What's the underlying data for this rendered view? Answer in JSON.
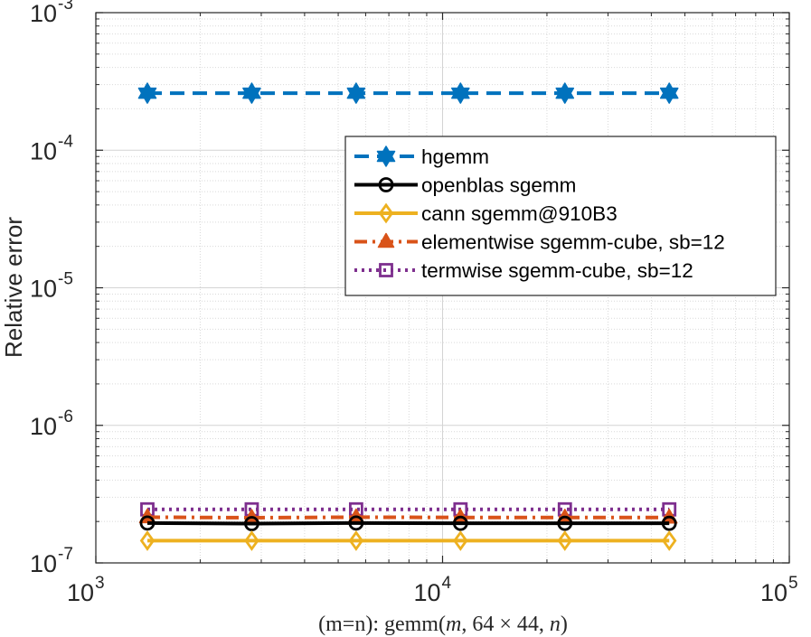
{
  "chart_data": {
    "type": "line",
    "title": "",
    "xlabel": "(m=n):  gemm(m, 64 × 44, n)",
    "xlabel_parts": {
      "prefix": "(m=n):  gemm(",
      "m": "m",
      "mid": ", 64 × 44, ",
      "n": "n",
      "suffix": ")"
    },
    "ylabel": "Relative error",
    "xscale": "log",
    "yscale": "log",
    "xlim": [
      1000,
      100000
    ],
    "ylim": [
      1e-07,
      0.001
    ],
    "grid": true,
    "minor_grid": true,
    "legend_position": "top-right",
    "x_ticks": [
      {
        "value": 1000,
        "base": "10",
        "exp": "3"
      },
      {
        "value": 10000,
        "base": "10",
        "exp": "4"
      },
      {
        "value": 100000,
        "base": "10",
        "exp": "5"
      }
    ],
    "y_ticks": [
      {
        "value": 1e-07,
        "base": "10",
        "exp": "-7"
      },
      {
        "value": 1e-06,
        "base": "10",
        "exp": "-6"
      },
      {
        "value": 1e-05,
        "base": "10",
        "exp": "-5"
      },
      {
        "value": 0.0001,
        "base": "10",
        "exp": "-4"
      },
      {
        "value": 0.001,
        "base": "10",
        "exp": "-3"
      }
    ],
    "x": [
      1408,
      2816,
      5632,
      11264,
      22528,
      45056
    ],
    "series": [
      {
        "name": "hgemm",
        "color": "#0072BD",
        "dash": "dashed",
        "marker": "hexagram",
        "values": [
          0.00026,
          0.00026,
          0.00026,
          0.00026,
          0.00026,
          0.00026
        ]
      },
      {
        "name": "openblas sgemm",
        "color": "#000000",
        "dash": "solid",
        "marker": "circle",
        "values": [
          1.95e-07,
          1.93e-07,
          1.95e-07,
          1.94e-07,
          1.94e-07,
          1.94e-07
        ]
      },
      {
        "name": "cann sgemm@910B3",
        "color": "#EDB120",
        "dash": "solid",
        "marker": "diamond",
        "values": [
          1.45e-07,
          1.45e-07,
          1.45e-07,
          1.45e-07,
          1.45e-07,
          1.45e-07
        ]
      },
      {
        "name": "elementwise sgemm-cube, sb=12",
        "color": "#D95319",
        "dash": "dashdot",
        "marker": "triangle",
        "values": [
          2.15e-07,
          2.13e-07,
          2.15e-07,
          2.14e-07,
          2.14e-07,
          2.14e-07
        ]
      },
      {
        "name": "termwise sgemm-cube, sb=12",
        "color": "#7E2F8E",
        "dash": "dotted",
        "marker": "square",
        "values": [
          2.45e-07,
          2.45e-07,
          2.45e-07,
          2.45e-07,
          2.45e-07,
          2.45e-07
        ]
      }
    ]
  }
}
